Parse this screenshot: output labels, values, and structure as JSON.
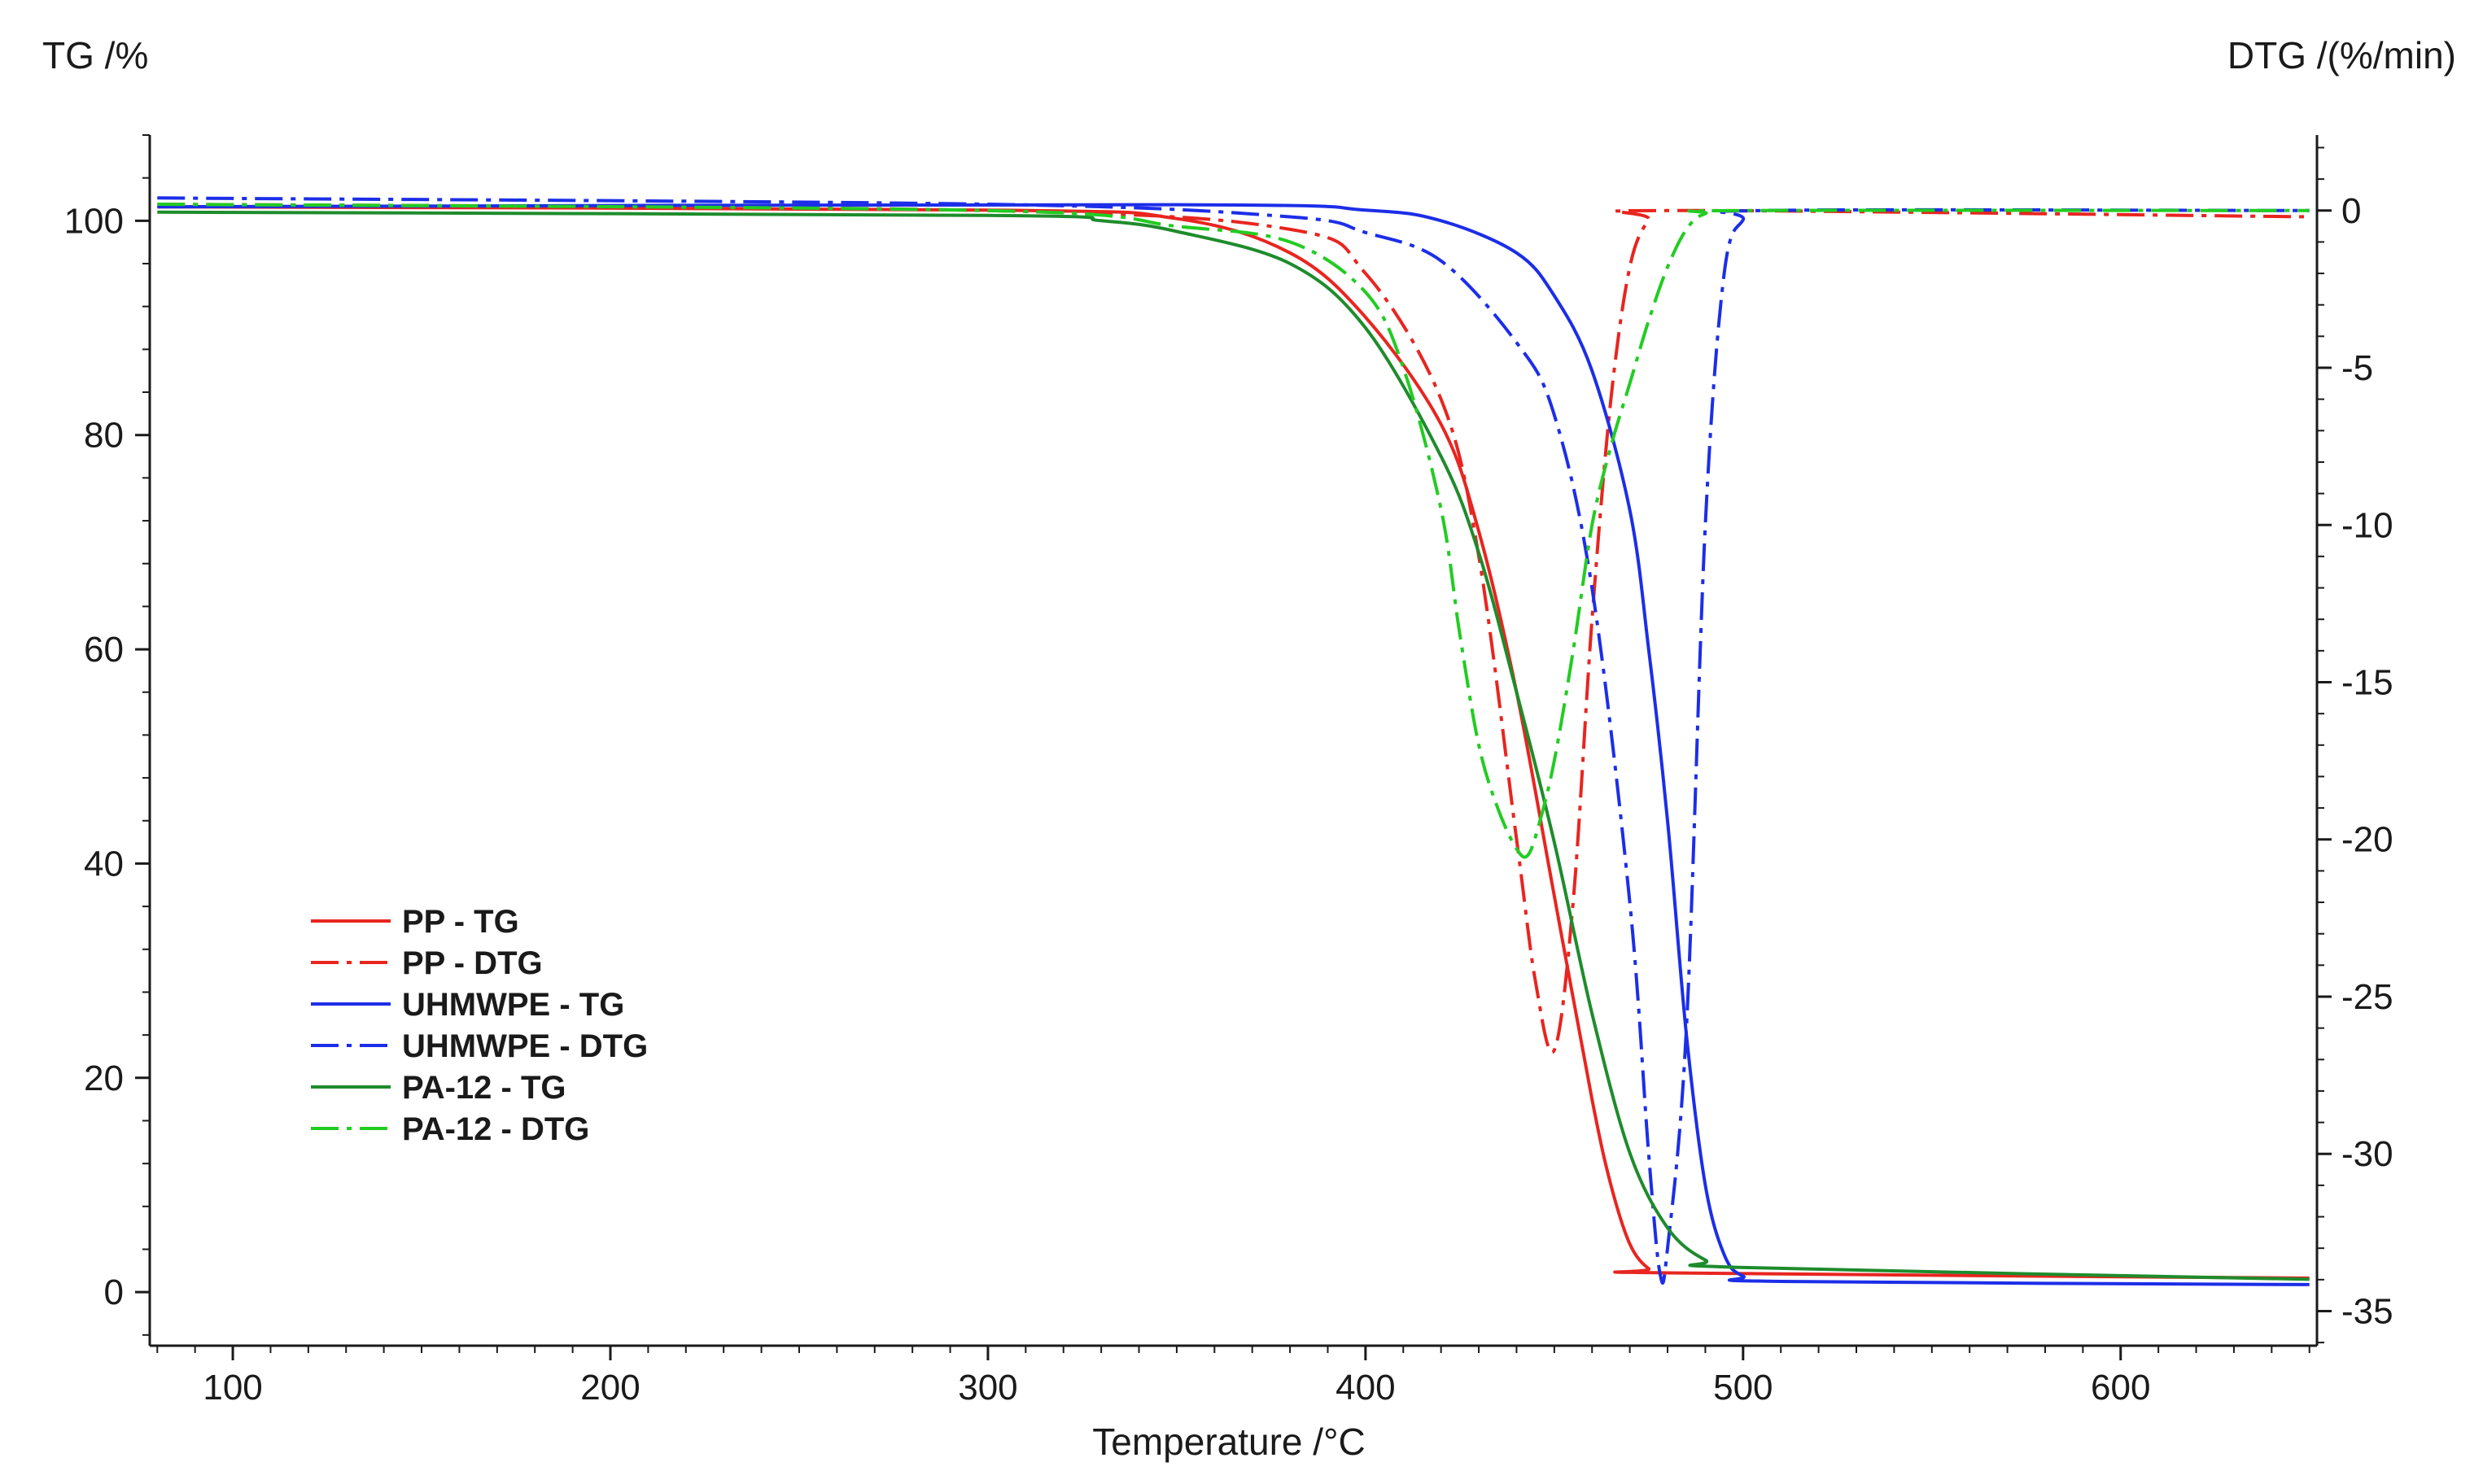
{
  "chart_data": {
    "type": "line",
    "title": "",
    "xlabel": "Temperature /°C",
    "ylabel": "TG /%",
    "y2label": "DTG /(%/min)",
    "xlim": [
      78,
      652
    ],
    "ylim": [
      -5,
      108
    ],
    "y2lim": [
      -36.1,
      2.4
    ],
    "x_ticks": [
      100,
      200,
      300,
      400,
      500,
      600
    ],
    "y_ticks": [
      0,
      20,
      40,
      60,
      80,
      100
    ],
    "y2_ticks": [
      0,
      -5,
      -10,
      -15,
      -20,
      -25,
      -30,
      -35
    ],
    "grid": false,
    "legend_position": "lower-left",
    "series": [
      {
        "name": "PP - TG",
        "axis": "left",
        "color": "#e8251f",
        "dash": "solid",
        "points": [
          [
            80,
            101.3
          ],
          [
            300,
            101.0
          ],
          [
            350,
            100.2
          ],
          [
            380,
            97
          ],
          [
            400,
            91
          ],
          [
            420,
            81
          ],
          [
            430,
            71
          ],
          [
            440,
            56
          ],
          [
            450,
            37
          ],
          [
            460,
            18
          ],
          [
            465,
            10
          ],
          [
            470,
            4.5
          ],
          [
            475,
            2.2
          ],
          [
            480,
            1.8
          ],
          [
            650,
            1.3
          ]
        ]
      },
      {
        "name": "PP - DTG",
        "axis": "right",
        "color": "#e8251f",
        "dash": "dashdot",
        "points": [
          [
            80,
            0.2
          ],
          [
            300,
            0
          ],
          [
            380,
            -0.6
          ],
          [
            400,
            -2
          ],
          [
            420,
            -6
          ],
          [
            430,
            -11
          ],
          [
            440,
            -20
          ],
          [
            445,
            -24.5
          ],
          [
            450,
            -26.7
          ],
          [
            455,
            -22
          ],
          [
            460,
            -13
          ],
          [
            465,
            -6
          ],
          [
            470,
            -1.8
          ],
          [
            475,
            -0.3
          ],
          [
            480,
            0
          ],
          [
            650,
            -0.2
          ]
        ]
      },
      {
        "name": "UHMWPE - TG",
        "axis": "left",
        "color": "#1c2ee8",
        "dash": "solid",
        "points": [
          [
            80,
            101.3
          ],
          [
            350,
            101.5
          ],
          [
            400,
            101.0
          ],
          [
            420,
            100
          ],
          [
            440,
            97
          ],
          [
            450,
            93
          ],
          [
            460,
            86
          ],
          [
            470,
            73
          ],
          [
            475,
            60
          ],
          [
            480,
            44
          ],
          [
            485,
            24
          ],
          [
            490,
            10
          ],
          [
            495,
            3.5
          ],
          [
            500,
            1.5
          ],
          [
            510,
            1.0
          ],
          [
            650,
            0.7
          ]
        ]
      },
      {
        "name": "UHMWPE - DTG",
        "axis": "right",
        "color": "#1c2ee8",
        "dash": "dashdot",
        "points": [
          [
            80,
            0.4
          ],
          [
            300,
            0.2
          ],
          [
            380,
            -0.2
          ],
          [
            400,
            -0.7
          ],
          [
            420,
            -1.6
          ],
          [
            440,
            -4.2
          ],
          [
            450,
            -6.5
          ],
          [
            460,
            -12
          ],
          [
            470,
            -22
          ],
          [
            475,
            -30
          ],
          [
            478,
            -33.8
          ],
          [
            480,
            -33
          ],
          [
            485,
            -26
          ],
          [
            490,
            -10
          ],
          [
            495,
            -2
          ],
          [
            500,
            -0.3
          ],
          [
            505,
            0
          ],
          [
            650,
            0
          ]
        ]
      },
      {
        "name": "PA-12 - TG",
        "axis": "left",
        "color": "#1e8c2c",
        "dash": "solid",
        "points": [
          [
            80,
            100.8
          ],
          [
            300,
            100.5
          ],
          [
            330,
            100
          ],
          [
            350,
            99
          ],
          [
            380,
            96
          ],
          [
            400,
            90
          ],
          [
            420,
            78
          ],
          [
            430,
            69
          ],
          [
            440,
            56
          ],
          [
            450,
            42
          ],
          [
            460,
            26
          ],
          [
            470,
            13
          ],
          [
            480,
            6
          ],
          [
            490,
            3
          ],
          [
            500,
            2.3
          ],
          [
            650,
            1.2
          ]
        ]
      },
      {
        "name": "PA-12 - DTG",
        "axis": "right",
        "color": "#22cc22",
        "dash": "dashdot",
        "points": [
          [
            80,
            0.2
          ],
          [
            300,
            0
          ],
          [
            350,
            -0.5
          ],
          [
            380,
            -1
          ],
          [
            400,
            -2.6
          ],
          [
            410,
            -5
          ],
          [
            420,
            -9.5
          ],
          [
            425,
            -13.5
          ],
          [
            430,
            -17
          ],
          [
            435,
            -19
          ],
          [
            440,
            -20.3
          ],
          [
            443,
            -20.5
          ],
          [
            446,
            -19.5
          ],
          [
            450,
            -17.5
          ],
          [
            455,
            -14
          ],
          [
            460,
            -10
          ],
          [
            465,
            -7.5
          ],
          [
            470,
            -5.5
          ],
          [
            475,
            -3.5
          ],
          [
            480,
            -1.8
          ],
          [
            485,
            -0.6
          ],
          [
            490,
            -0.1
          ],
          [
            500,
            0
          ],
          [
            650,
            0
          ]
        ]
      }
    ]
  }
}
